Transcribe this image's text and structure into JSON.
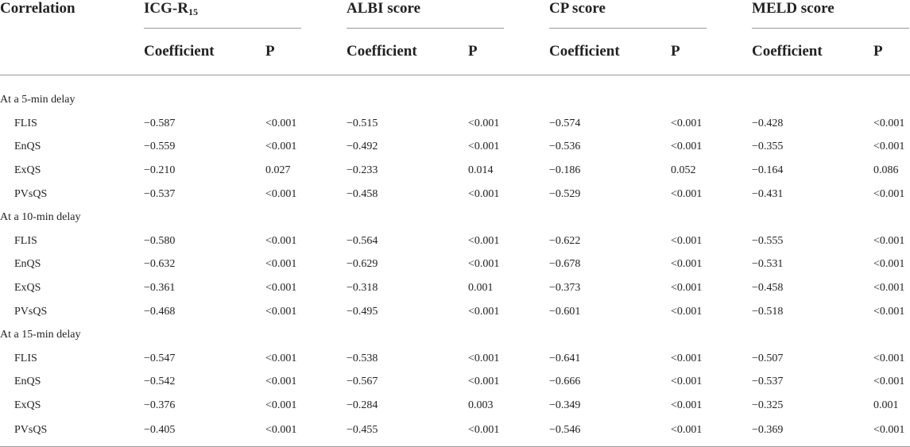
{
  "header": {
    "row_label": "Correlation",
    "groups": [
      {
        "title": "ICG-R",
        "sub": "15",
        "coef_label": "Coefficient",
        "p_label": "P"
      },
      {
        "title": "ALBI score",
        "sub": "",
        "coef_label": "Coefficient",
        "p_label": "P"
      },
      {
        "title": "CP score",
        "sub": "",
        "coef_label": "Coefficient",
        "p_label": "P"
      },
      {
        "title": "MELD score",
        "sub": "",
        "coef_label": "Coefficient",
        "p_label": "P"
      }
    ]
  },
  "sections": [
    {
      "label": "At a 5-min delay",
      "rows": [
        {
          "name": "FLIS",
          "values": [
            "−0.587",
            "<0.001",
            "−0.515",
            "<0.001",
            "−0.574",
            "<0.001",
            "−0.428",
            "<0.001"
          ]
        },
        {
          "name": "EnQS",
          "values": [
            "−0.559",
            "<0.001",
            "−0.492",
            "<0.001",
            "−0.536",
            "<0.001",
            "−0.355",
            "<0.001"
          ]
        },
        {
          "name": "ExQS",
          "values": [
            "−0.210",
            "0.027",
            "−0.233",
            "0.014",
            "−0.186",
            "0.052",
            "−0.164",
            "0.086"
          ]
        },
        {
          "name": "PVsQS",
          "values": [
            "−0.537",
            "<0.001",
            "−0.458",
            "<0.001",
            "−0.529",
            "<0.001",
            "−0.431",
            "<0.001"
          ]
        }
      ]
    },
    {
      "label": "At a 10-min delay",
      "rows": [
        {
          "name": "FLIS",
          "values": [
            "−0.580",
            "<0.001",
            "−0.564",
            "<0.001",
            "−0.622",
            "<0.001",
            "−0.555",
            "<0.001"
          ]
        },
        {
          "name": "EnQS",
          "values": [
            "−0.632",
            "<0.001",
            "−0.629",
            "<0.001",
            "−0.678",
            "<0.001",
            "−0.531",
            "<0.001"
          ]
        },
        {
          "name": "ExQS",
          "values": [
            "−0.361",
            "<0.001",
            "−0.318",
            "0.001",
            "−0.373",
            "<0.001",
            "−0.458",
            "<0.001"
          ]
        },
        {
          "name": "PVsQS",
          "values": [
            "−0.468",
            "<0.001",
            "−0.495",
            "<0.001",
            "−0.601",
            "<0.001",
            "−0.518",
            "<0.001"
          ]
        }
      ]
    },
    {
      "label": "At a 15-min delay",
      "rows": [
        {
          "name": "FLIS",
          "values": [
            "−0.547",
            "<0.001",
            "−0.538",
            "<0.001",
            "−0.641",
            "<0.001",
            "−0.507",
            "<0.001"
          ]
        },
        {
          "name": "EnQS",
          "values": [
            "−0.542",
            "<0.001",
            "−0.567",
            "<0.001",
            "−0.666",
            "<0.001",
            "−0.537",
            "<0.001"
          ]
        },
        {
          "name": "ExQS",
          "values": [
            "−0.376",
            "<0.001",
            "−0.284",
            "0.003",
            "−0.349",
            "<0.001",
            "−0.325",
            "0.001"
          ]
        },
        {
          "name": "PVsQS",
          "values": [
            "−0.405",
            "<0.001",
            "−0.455",
            "<0.001",
            "−0.546",
            "<0.001",
            "−0.369",
            "<0.001"
          ]
        }
      ]
    }
  ]
}
